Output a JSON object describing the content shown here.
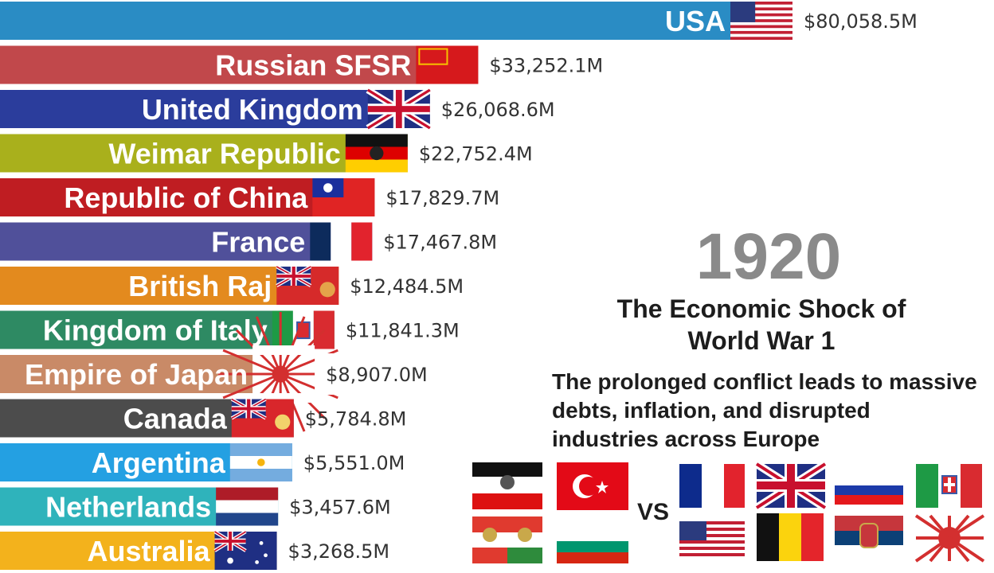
{
  "year": "1920",
  "headline": "The Economic Shock of World War 1",
  "subtext": "The prolonged conflict leads to massive debts, inflation, and disrupted industries across Europe",
  "vs_label": "VS",
  "chart_data": {
    "type": "bar",
    "orientation": "horizontal",
    "unit_prefix": "$",
    "unit_suffix": "M",
    "categories": [
      "USA",
      "Russian SFSR",
      "United Kingdom",
      "Weimar Republic",
      "Republic of China",
      "France",
      "British Raj",
      "Kingdom of Italy",
      "Empire of Japan",
      "Canada",
      "Argentina",
      "Netherlands",
      "Australia"
    ],
    "values": [
      80058.5,
      33252.1,
      26068.6,
      22752.4,
      17829.7,
      17467.8,
      12484.5,
      11841.3,
      8907.0,
      5784.8,
      5551.0,
      3457.6,
      3268.5
    ],
    "value_labels": [
      "$80,058.5M",
      "$33,252.1M",
      "$26,068.6M",
      "$22,752.4M",
      "$17,829.7M",
      "$17,467.8M",
      "$12,484.5M",
      "$11,841.3M",
      "$8,907.0M",
      "$5,784.8M",
      "$5,551.0M",
      "$3,457.6M",
      "$3,268.5M"
    ],
    "colors": [
      "#2a8cc4",
      "#c1484b",
      "#2b3d9c",
      "#a9b01c",
      "#bf1d22",
      "#50509a",
      "#e38a1e",
      "#2e8a63",
      "#c98a67",
      "#4c4c4c",
      "#24a0e2",
      "#2fb3bb",
      "#f3b21c"
    ],
    "flags": [
      "usa",
      "russian-sfsr",
      "united-kingdom",
      "weimar-republic",
      "republic-of-china",
      "france",
      "british-raj",
      "kingdom-of-italy",
      "empire-of-japan",
      "canada",
      "argentina",
      "netherlands",
      "australia"
    ],
    "xlim": [
      0,
      80058.5
    ]
  },
  "alliances": {
    "central_powers": [
      "german-empire",
      "ottoman-empire",
      "austria-hungary",
      "bulgaria"
    ],
    "allies": [
      "france",
      "united-kingdom",
      "russian-empire",
      "kingdom-of-italy",
      "usa",
      "belgium",
      "serbia",
      "empire-of-japan"
    ]
  }
}
